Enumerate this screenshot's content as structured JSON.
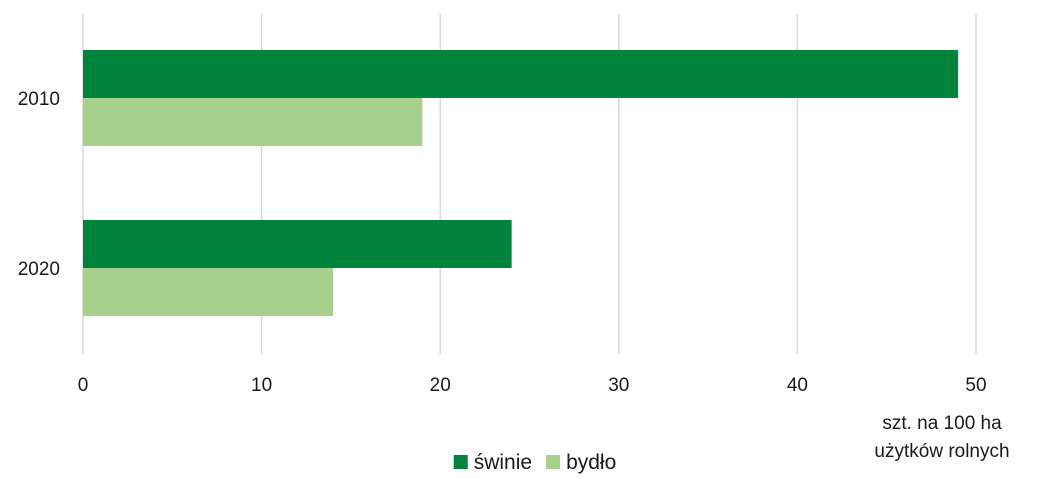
{
  "chart_data": {
    "type": "bar",
    "orientation": "horizontal",
    "categories": [
      "2010",
      "2020"
    ],
    "series": [
      {
        "name": "świnie",
        "values": [
          49,
          24
        ],
        "color": "#00843d"
      },
      {
        "name": "bydło",
        "values": [
          19,
          14
        ],
        "color": "#a8d08d"
      }
    ],
    "xlim": [
      0,
      50
    ],
    "xticks": [
      "0",
      "10",
      "20",
      "30",
      "40",
      "50"
    ],
    "xlabel_lines": [
      "szt. na 100 ha",
      "użytków rolnych"
    ],
    "grid": "vertical",
    "legend_position": "bottom"
  }
}
